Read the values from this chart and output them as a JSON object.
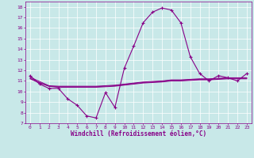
{
  "xlabel": "Windchill (Refroidissement éolien,°C)",
  "bg_color": "#c8e8e8",
  "line_color": "#880088",
  "xlim": [
    -0.5,
    23.5
  ],
  "ylim": [
    7,
    18.5
  ],
  "xticks": [
    0,
    1,
    2,
    3,
    4,
    5,
    6,
    7,
    8,
    9,
    10,
    11,
    12,
    13,
    14,
    15,
    16,
    17,
    18,
    19,
    20,
    21,
    22,
    23
  ],
  "yticks": [
    7,
    8,
    9,
    10,
    11,
    12,
    13,
    14,
    15,
    16,
    17,
    18
  ],
  "main_x": [
    0,
    1,
    2,
    3,
    4,
    5,
    6,
    7,
    8,
    9,
    10,
    11,
    12,
    13,
    14,
    15,
    16,
    17,
    18,
    19,
    20,
    21,
    22,
    23
  ],
  "main_y": [
    11.5,
    10.7,
    10.3,
    10.3,
    9.3,
    8.7,
    7.7,
    7.5,
    9.9,
    8.5,
    12.2,
    14.3,
    16.5,
    17.5,
    17.9,
    17.7,
    16.5,
    13.3,
    11.7,
    11.0,
    11.5,
    11.3,
    11.0,
    11.7
  ],
  "line2_y": [
    11.2,
    10.8,
    10.5,
    10.4,
    10.4,
    10.4,
    10.4,
    10.4,
    10.45,
    10.5,
    10.6,
    10.7,
    10.8,
    10.85,
    10.9,
    11.0,
    11.0,
    11.05,
    11.1,
    11.1,
    11.15,
    11.2,
    11.2,
    11.2
  ],
  "line3_y": [
    11.25,
    10.85,
    10.5,
    10.45,
    10.45,
    10.45,
    10.45,
    10.45,
    10.5,
    10.55,
    10.65,
    10.75,
    10.85,
    10.9,
    10.95,
    11.05,
    11.05,
    11.1,
    11.15,
    11.15,
    11.2,
    11.25,
    11.25,
    11.25
  ],
  "line4_y": [
    11.35,
    10.95,
    10.55,
    10.5,
    10.5,
    10.5,
    10.5,
    10.5,
    10.55,
    10.6,
    10.7,
    10.8,
    10.9,
    10.95,
    11.0,
    11.1,
    11.1,
    11.15,
    11.2,
    11.2,
    11.25,
    11.3,
    11.3,
    11.3
  ]
}
